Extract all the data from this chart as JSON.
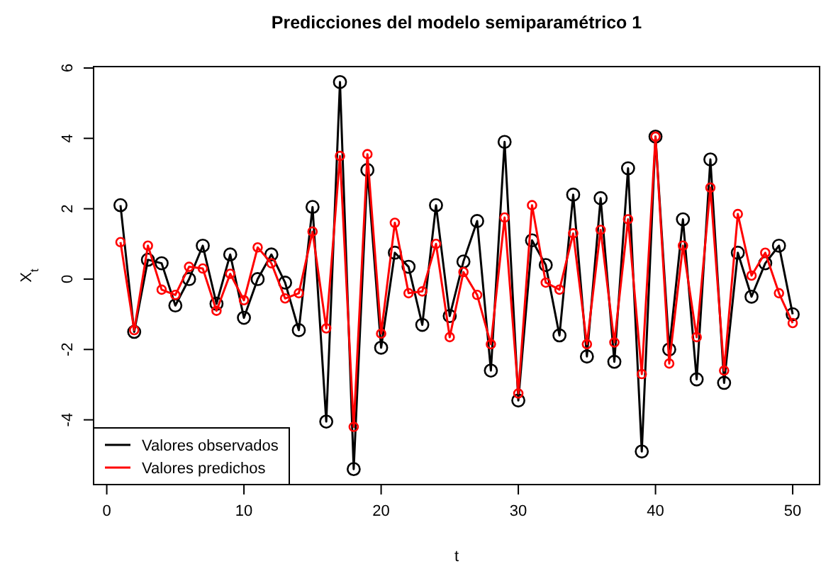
{
  "chart_data": {
    "type": "line",
    "title": "Predicciones del modelo semiparamétrico 1",
    "xlabel": "t",
    "ylabel": "X$_{t}$",
    "x": [
      1,
      2,
      3,
      4,
      5,
      6,
      7,
      8,
      9,
      10,
      11,
      12,
      13,
      14,
      15,
      16,
      17,
      18,
      19,
      20,
      21,
      22,
      23,
      24,
      25,
      26,
      27,
      28,
      29,
      30,
      31,
      32,
      33,
      34,
      35,
      36,
      37,
      38,
      39,
      40,
      41,
      42,
      43,
      44,
      45,
      46,
      47,
      48,
      49,
      50
    ],
    "series": [
      {
        "name": "Valores observados",
        "color": "#000000",
        "values": [
          2.1,
          -1.5,
          0.55,
          0.45,
          -0.75,
          0.0,
          0.95,
          -0.7,
          0.7,
          -1.1,
          0.0,
          0.7,
          -0.1,
          -1.45,
          2.05,
          -4.05,
          5.6,
          -5.4,
          3.1,
          -1.95,
          0.75,
          0.35,
          -1.3,
          2.1,
          -1.05,
          0.5,
          1.65,
          -2.6,
          3.9,
          -3.45,
          1.1,
          0.4,
          -1.6,
          2.4,
          -2.2,
          2.3,
          -2.35,
          3.15,
          -4.9,
          4.05,
          -2.0,
          1.7,
          -2.85,
          3.4,
          -2.95,
          0.75,
          -0.5,
          0.45,
          0.95,
          -1.0
        ]
      },
      {
        "name": "Valores predichos",
        "color": "#ff0000",
        "values": [
          1.05,
          -1.45,
          0.95,
          -0.3,
          -0.45,
          0.35,
          0.3,
          -0.9,
          0.15,
          -0.6,
          0.9,
          0.45,
          -0.55,
          -0.4,
          1.35,
          -1.4,
          3.5,
          -4.2,
          3.55,
          -1.55,
          1.6,
          -0.4,
          -0.35,
          1.0,
          -1.65,
          0.2,
          -0.45,
          -1.85,
          1.75,
          -3.25,
          2.1,
          -0.1,
          -0.3,
          1.3,
          -1.85,
          1.4,
          -1.8,
          1.7,
          -2.7,
          4.05,
          -2.4,
          0.95,
          -1.65,
          2.6,
          -2.6,
          1.85,
          0.1,
          0.75,
          -0.4,
          -1.25
        ]
      }
    ],
    "xlim": [
      -0.96,
      51.96
    ],
    "ylim": [
      -5.84,
      6.04
    ],
    "xticks": [
      0,
      10,
      20,
      30,
      40,
      50
    ],
    "yticks": [
      -4,
      -2,
      0,
      2,
      4,
      6
    ],
    "marker": "circle",
    "line_style": "solid",
    "legend": "bottom left"
  }
}
